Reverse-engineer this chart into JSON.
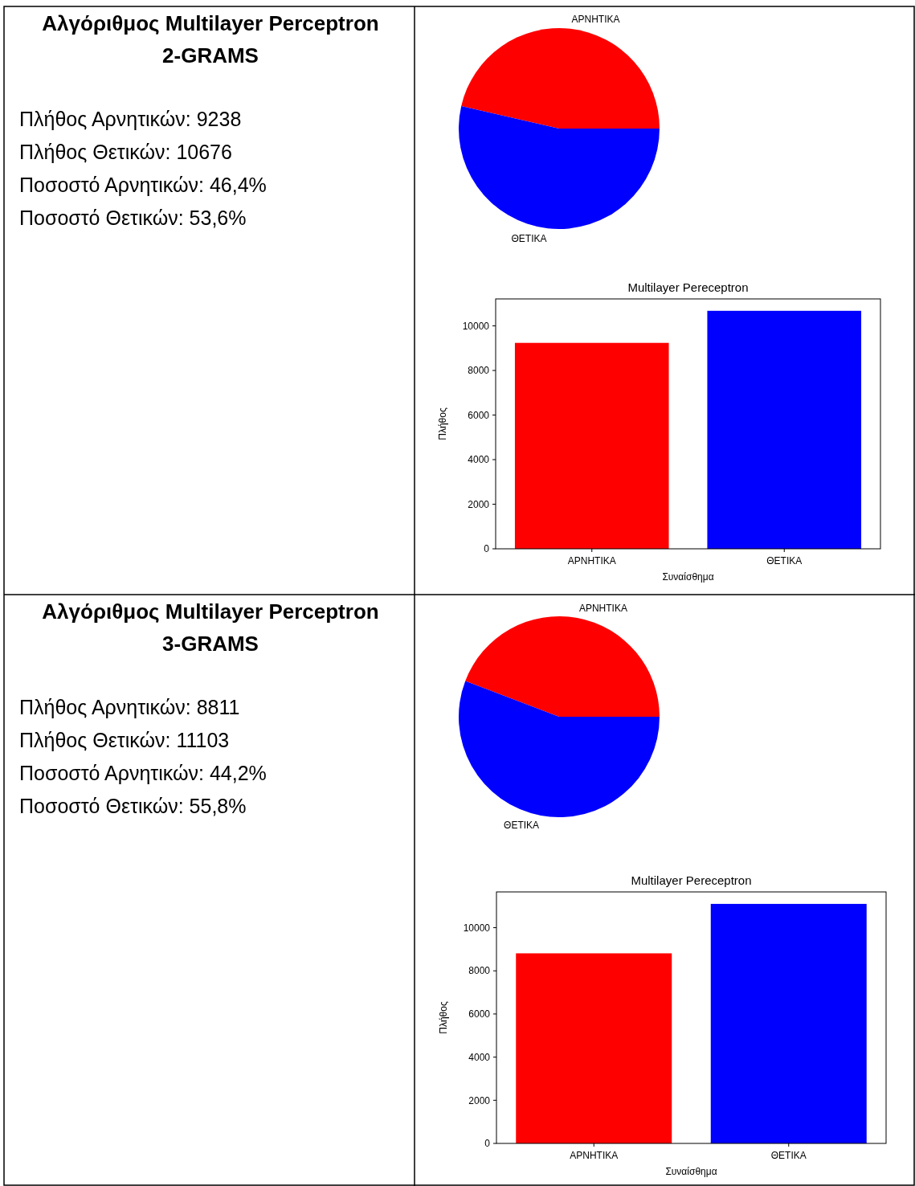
{
  "chart_data": [
    {
      "type": "other",
      "title": "Αλγόριθμος Multilayer Perceptron",
      "subtitle": "2-GRAMS",
      "annotations": [
        "Πλήθος Αρνητικών: 9238",
        "Πλήθος Θετικών: 10676",
        "Ποσοστό Αρνητικών: 46,4%",
        "Ποσοστό Θετικών: 53,6%"
      ]
    },
    {
      "type": "pie",
      "categories": [
        "ΑΡΝΗΤΙΚΑ",
        "ΘΕΤΙΚΑ"
      ],
      "values": [
        46.4,
        53.6
      ],
      "colors": [
        "#ff0000",
        "#0000ff"
      ]
    },
    {
      "type": "bar",
      "title": "Multilayer Pereceptron",
      "xlabel": "Συναίσθημα",
      "ylabel": "Πλήθος",
      "categories": [
        "ΑΡΝΗΤΙΚΑ",
        "ΘΕΤΙΚΑ"
      ],
      "values": [
        9238,
        10676
      ],
      "colors": [
        "#ff0000",
        "#0000ff"
      ],
      "ylim": [
        0,
        11209.8
      ],
      "yticks": [
        0,
        2000,
        4000,
        6000,
        8000,
        10000
      ]
    },
    {
      "type": "other",
      "title": "Αλγόριθμος Multilayer Perceptron",
      "subtitle": "3-GRAMS",
      "annotations": [
        "Πλήθος Αρνητικών: 8811",
        "Πλήθος Θετικών: 11103",
        "Ποσοστό Αρνητικών: 44,2%",
        "Ποσοστό Θετικών: 55,8%"
      ]
    },
    {
      "type": "pie",
      "categories": [
        "ΑΡΝΗΤΙΚΑ",
        "ΘΕΤΙΚΑ"
      ],
      "values": [
        44.2,
        55.8
      ],
      "colors": [
        "#ff0000",
        "#0000ff"
      ]
    },
    {
      "type": "bar",
      "title": "Multilayer Pereceptron",
      "xlabel": "Συναίσθημα",
      "ylabel": "Πλήθος",
      "categories": [
        "ΑΡΝΗΤΙΚΑ",
        "ΘΕΤΙΚΑ"
      ],
      "values": [
        8811,
        11103
      ],
      "colors": [
        "#ff0000",
        "#0000ff"
      ],
      "ylim": [
        0,
        11658.15
      ],
      "yticks": [
        0,
        2000,
        4000,
        6000,
        8000,
        10000
      ]
    }
  ]
}
